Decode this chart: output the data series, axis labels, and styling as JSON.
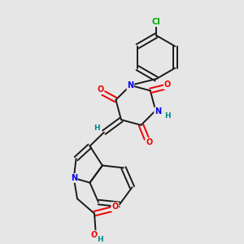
{
  "background_color": "#e6e6e6",
  "bond_color": "#1a1a1a",
  "atom_colors": {
    "N": "#0000ee",
    "O": "#ee0000",
    "Cl": "#00aa00",
    "H": "#008888",
    "C": "#1a1a1a"
  }
}
